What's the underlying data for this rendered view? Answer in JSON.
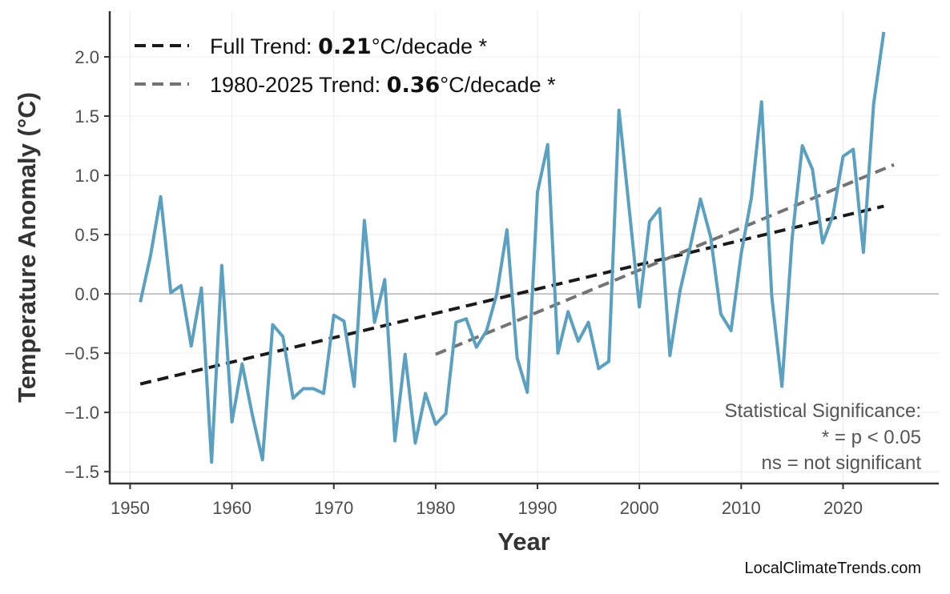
{
  "chart_data": {
    "type": "line",
    "xlabel": "Year",
    "ylabel": "Temperature Anomaly (°C)",
    "xlim": [
      1948,
      2029.4
    ],
    "ylim": [
      -1.6,
      2.385
    ],
    "x_ticks": [
      1950,
      1960,
      1970,
      1980,
      1990,
      2000,
      2010,
      2020
    ],
    "y_ticks": [
      -1.5,
      -1.0,
      -0.5,
      0.0,
      0.5,
      1.0,
      1.5,
      2.0
    ],
    "y_tick_labels": [
      "−1.5",
      "−1.0",
      "−0.5",
      "0.0",
      "0.5",
      "1.0",
      "1.5",
      "2.0"
    ],
    "grid": true,
    "zero_line": true,
    "legend_position": "top-left",
    "series": [
      {
        "color": "#5aa0c0",
        "x": [
          1951,
          1952,
          1953,
          1954,
          1955,
          1956,
          1957,
          1958,
          1959,
          1960,
          1961,
          1962,
          1963,
          1964,
          1965,
          1966,
          1967,
          1968,
          1969,
          1970,
          1971,
          1972,
          1973,
          1974,
          1975,
          1976,
          1977,
          1978,
          1979,
          1980,
          1981,
          1982,
          1983,
          1984,
          1985,
          1986,
          1987,
          1988,
          1989,
          1990,
          1991,
          1992,
          1993,
          1994,
          1995,
          1996,
          1997,
          1998,
          1999,
          2000,
          2001,
          2002,
          2003,
          2004,
          2005,
          2006,
          2007,
          2008,
          2009,
          2010,
          2011,
          2012,
          2013,
          2014,
          2015,
          2016,
          2017,
          2018,
          2019,
          2020,
          2021,
          2022,
          2023,
          2024
        ],
        "y": [
          -0.07,
          0.32,
          0.82,
          0.01,
          0.07,
          -0.44,
          0.05,
          -1.42,
          0.24,
          -1.08,
          -0.59,
          -1.02,
          -1.4,
          -0.26,
          -0.36,
          -0.88,
          -0.8,
          -0.8,
          -0.84,
          -0.18,
          -0.23,
          -0.78,
          0.62,
          -0.24,
          0.12,
          -1.24,
          -0.51,
          -1.26,
          -0.84,
          -1.1,
          -1.01,
          -0.24,
          -0.21,
          -0.45,
          -0.31,
          0.0,
          0.54,
          -0.54,
          -0.83,
          0.86,
          1.26,
          -0.5,
          -0.15,
          -0.4,
          -0.24,
          -0.63,
          -0.57,
          1.55,
          0.72,
          -0.11,
          0.61,
          0.72,
          -0.52,
          0.03,
          0.4,
          0.8,
          0.48,
          -0.17,
          -0.31,
          0.34,
          0.81,
          1.62,
          -0.02,
          -0.78,
          0.47,
          1.25,
          1.05,
          0.43,
          0.66,
          1.16,
          1.22,
          0.35,
          1.6,
          2.21
        ]
      }
    ],
    "trends": [
      {
        "label_prefix": "Full Trend: ",
        "value": "0.21",
        "label_suffix": "°C/decade *",
        "color": "#1a1a1a",
        "x": [
          1951,
          2024
        ],
        "y": [
          -0.76,
          0.74
        ]
      },
      {
        "label_prefix": "1980-2025 Trend: ",
        "value": "0.36",
        "label_suffix": "°C/decade *",
        "color": "#737373",
        "x": [
          1980,
          2025
        ],
        "y": [
          -0.51,
          1.09
        ]
      }
    ],
    "annotation": [
      "Statistical Significance:",
      "* = p < 0.05",
      "ns = not significant"
    ],
    "watermark": "LocalClimateTrends.com"
  }
}
